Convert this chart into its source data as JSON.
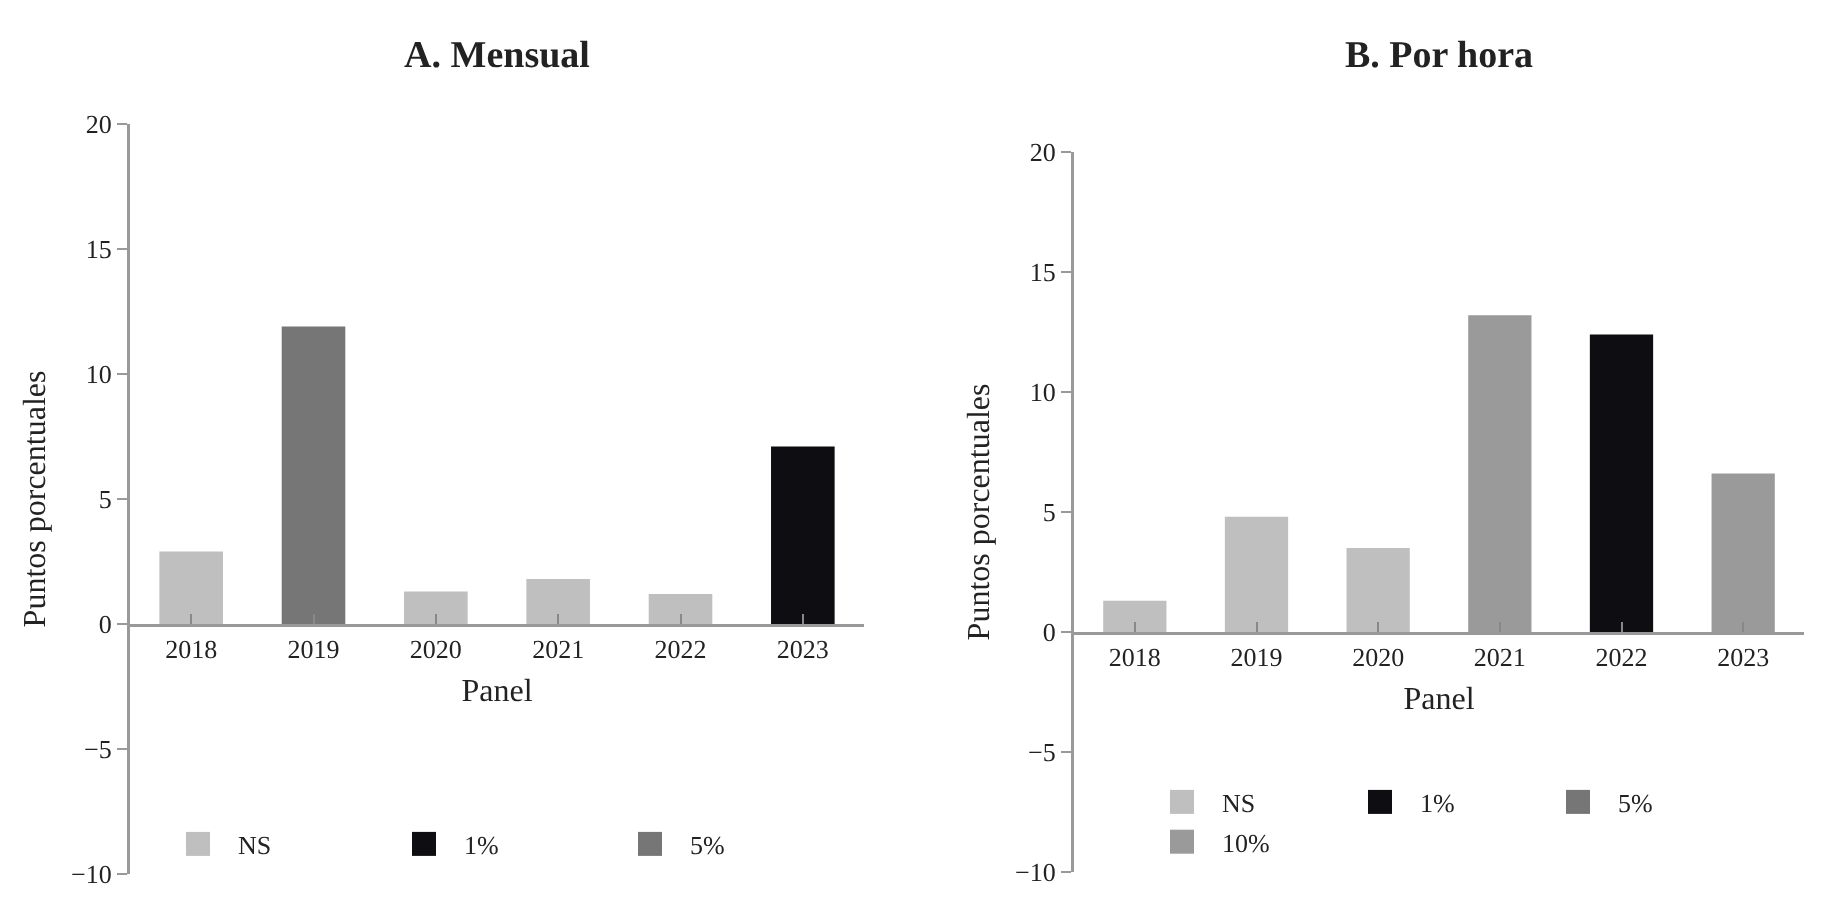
{
  "chart_data": [
    {
      "type": "bar",
      "title": "A. Mensual",
      "xlabel": "Panel",
      "ylabel": "Puntos porcentuales",
      "categories": [
        "2018",
        "2019",
        "2020",
        "2021",
        "2022",
        "2023"
      ],
      "series": [
        {
          "name": "NS",
          "color": "#bfbfbf",
          "values": [
            2.9,
            null,
            1.3,
            1.8,
            1.2,
            null
          ]
        },
        {
          "name": "1%",
          "color": "#0d0d12",
          "values": [
            null,
            null,
            null,
            null,
            null,
            7.1
          ]
        },
        {
          "name": "5%",
          "color": "#767676",
          "values": [
            null,
            11.9,
            null,
            null,
            null,
            null
          ]
        }
      ],
      "ylim": [
        -10,
        20
      ],
      "yticks": [
        -10,
        -5,
        0,
        5,
        10,
        15,
        20
      ],
      "grid": false,
      "legend": "bottom"
    },
    {
      "type": "bar",
      "title": "B. Por hora",
      "xlabel": "Panel",
      "ylabel": "Puntos porcentuales",
      "categories": [
        "2018",
        "2019",
        "2020",
        "2021",
        "2022",
        "2023"
      ],
      "series": [
        {
          "name": "NS",
          "color": "#bfbfbf",
          "values": [
            1.3,
            4.8,
            3.5,
            null,
            null,
            null
          ]
        },
        {
          "name": "1%",
          "color": "#0d0d12",
          "values": [
            null,
            null,
            null,
            null,
            12.4,
            null
          ]
        },
        {
          "name": "5%",
          "color": "#767676",
          "values": [
            null,
            null,
            null,
            null,
            null,
            null
          ]
        },
        {
          "name": "10%",
          "color": "#9a9a9a",
          "values": [
            null,
            null,
            null,
            13.2,
            null,
            6.6
          ]
        }
      ],
      "ylim": [
        -10,
        20
      ],
      "yticks": [
        -10,
        -5,
        0,
        5,
        10,
        15,
        20
      ],
      "grid": false,
      "legend": "bottom"
    }
  ]
}
